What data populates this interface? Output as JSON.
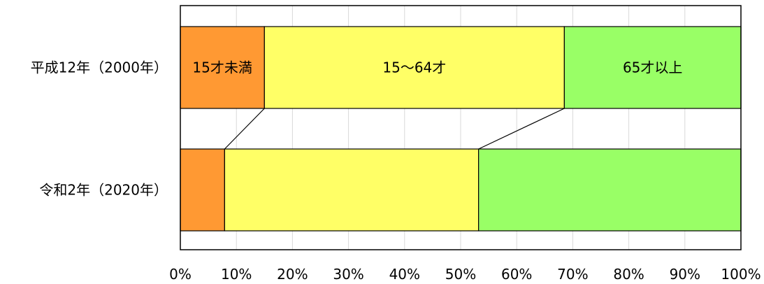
{
  "chart_data": {
    "type": "bar",
    "orientation": "horizontal",
    "stacked": "percent",
    "categories": [
      "平成12年（2000年）",
      "令和2年（2020年）"
    ],
    "series": [
      {
        "name": "15才未満",
        "values": [
          15.0,
          7.9
        ],
        "color": "#FF9933"
      },
      {
        "name": "15～64才",
        "values": [
          53.5,
          45.3
        ],
        "color": "#FFFF66"
      },
      {
        "name": "65才以上",
        "values": [
          31.5,
          46.8
        ],
        "color": "#99FF66"
      }
    ],
    "xlim": [
      0,
      100
    ],
    "x_ticks": [
      "0%",
      "10%",
      "20%",
      "30%",
      "40%",
      "50%",
      "60%",
      "70%",
      "80%",
      "90%",
      "100%"
    ],
    "grid": true,
    "series_lines": true,
    "segment_labels_on": "平成12年（2000年）",
    "title": "",
    "xlabel": "",
    "ylabel": ""
  }
}
